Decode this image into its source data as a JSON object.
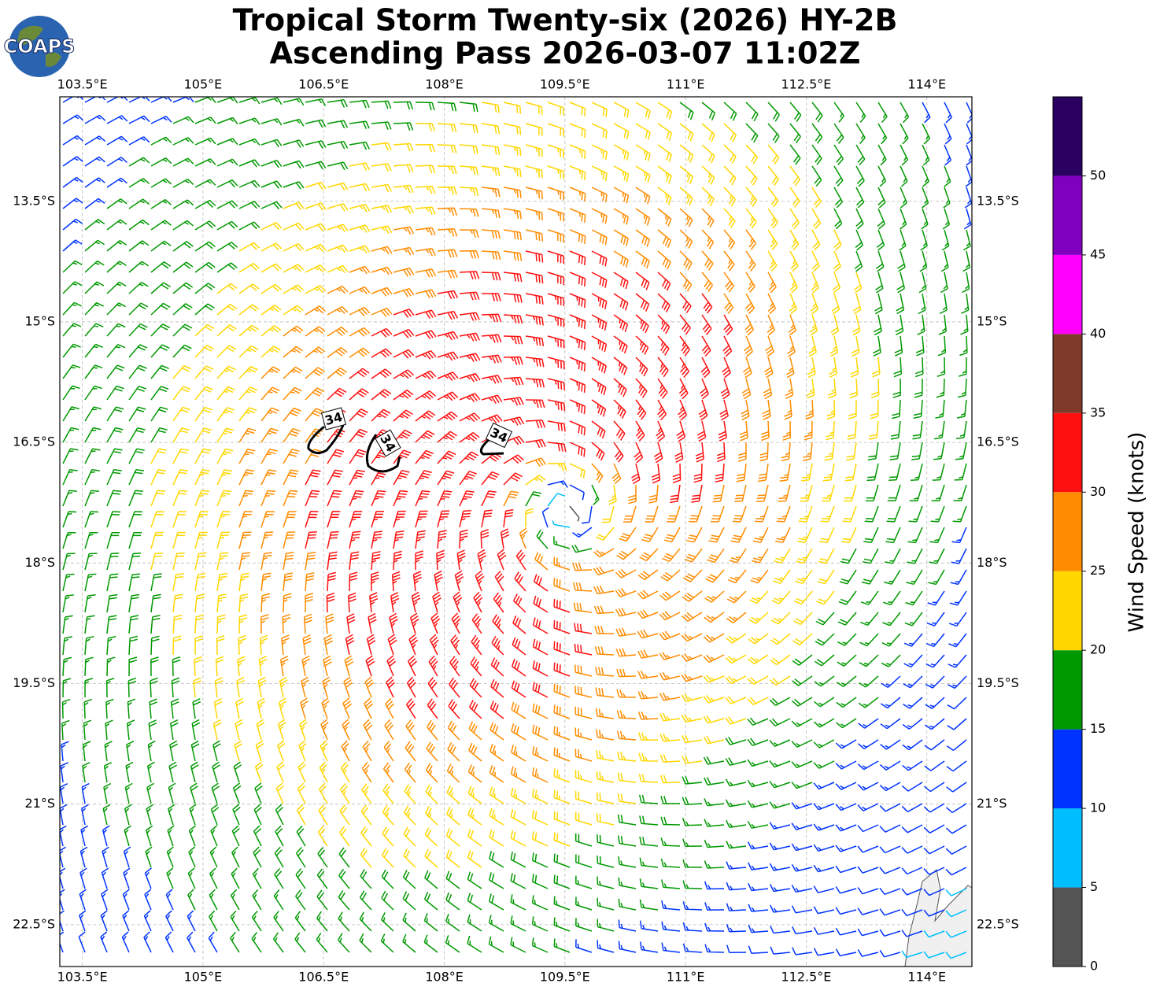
{
  "map": {
    "title": [
      "Tropical Storm Twenty-six (2026) HY-2B",
      "Ascending Pass 2026-03-07 11:02Z"
    ],
    "logo": "COAPS",
    "xlim": [
      103.22,
      114.56
    ],
    "ylim": [
      -23.02,
      -12.2
    ],
    "xticks": [
      {
        "value": 103.5,
        "label": "103.5°E"
      },
      {
        "value": 105,
        "label": "105°E"
      },
      {
        "value": 106.5,
        "label": "106.5°E"
      },
      {
        "value": 108,
        "label": "108°E"
      },
      {
        "value": 109.5,
        "label": "109.5°E"
      },
      {
        "value": 111,
        "label": "111°E"
      },
      {
        "value": 112.5,
        "label": "112.5°E"
      },
      {
        "value": 114,
        "label": "114°E"
      }
    ],
    "yticks": [
      {
        "value": -13.5,
        "label": "13.5°S"
      },
      {
        "value": -15,
        "label": "15°S"
      },
      {
        "value": -16.5,
        "label": "16.5°S"
      },
      {
        "value": -18,
        "label": "18°S"
      },
      {
        "value": -19.5,
        "label": "19.5°S"
      },
      {
        "value": -21,
        "label": "21°S"
      },
      {
        "value": -22.5,
        "label": "22.5°S"
      }
    ],
    "grid": true,
    "contour_labels": [
      "34",
      "34",
      "34"
    ],
    "colorbar": {
      "label": "Wind Speed (knots)",
      "lim": [
        0,
        55
      ],
      "bins": [
        0,
        5,
        10,
        15,
        20,
        25,
        30,
        35,
        40,
        45,
        50,
        55
      ],
      "colors": [
        "#555555",
        "#00bfff",
        "#0033ff",
        "#009900",
        "#ffd700",
        "#ff8c00",
        "#ff1010",
        "#7f3a2a",
        "#ff00ff",
        "#8000c0",
        "#2a0060"
      ],
      "ticks": [
        0,
        5,
        10,
        15,
        20,
        25,
        30,
        35,
        40,
        45,
        50
      ]
    }
  }
}
